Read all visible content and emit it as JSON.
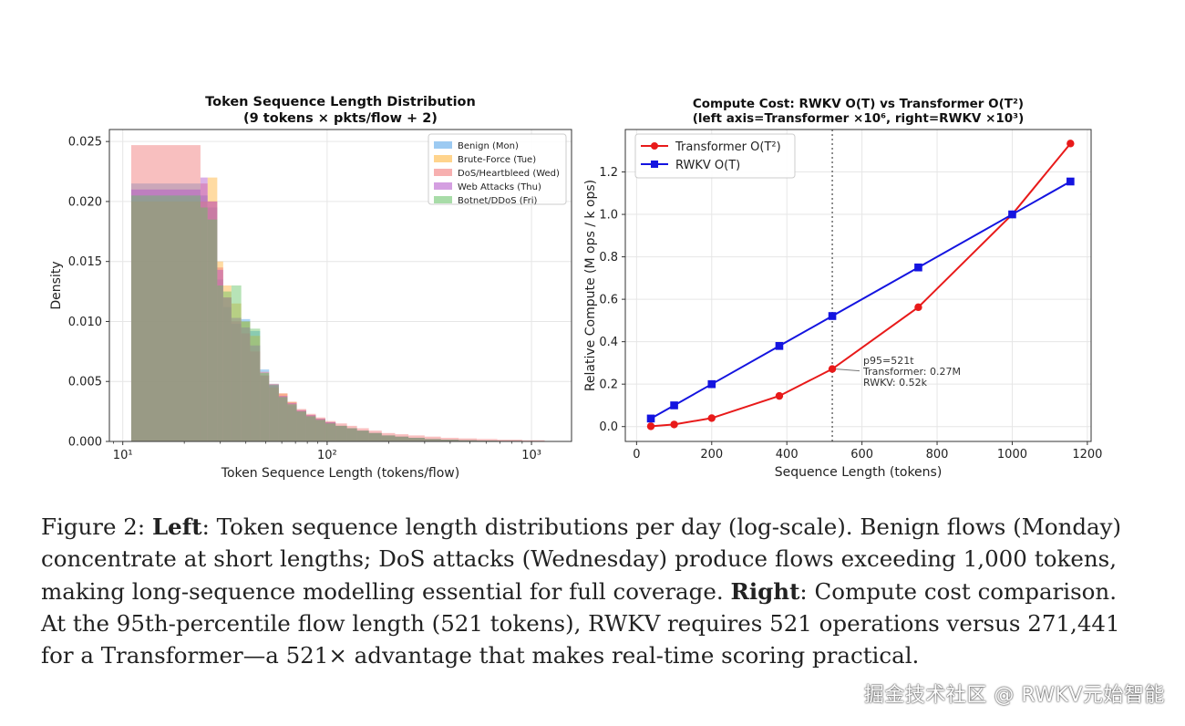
{
  "chart_data": [
    {
      "type": "histogram",
      "title": "Token Sequence Length Distribution",
      "subtitle": "(9 tokens × pkts/flow + 2)",
      "xlabel": "Token Sequence Length (tokens/flow)",
      "ylabel": "Density",
      "xscale": "log",
      "xlim": [
        8.6,
        1570
      ],
      "ylim": [
        0,
        0.026
      ],
      "xticks": [
        {
          "v": 10,
          "label": "10¹"
        },
        {
          "v": 100,
          "label": "10²"
        },
        {
          "v": 1000,
          "label": "10³"
        }
      ],
      "yticks": [
        {
          "v": 0.0,
          "label": "0.000"
        },
        {
          "v": 0.005,
          "label": "0.005"
        },
        {
          "v": 0.01,
          "label": "0.010"
        },
        {
          "v": 0.015,
          "label": "0.015"
        },
        {
          "v": 0.02,
          "label": "0.020"
        },
        {
          "v": 0.025,
          "label": "0.025"
        }
      ],
      "grid": true,
      "legend_position": "top-right",
      "bin_edges": [
        11,
        24,
        26,
        29,
        31,
        34,
        38,
        42,
        47,
        52,
        58,
        64,
        71,
        79,
        88,
        98,
        110,
        125,
        140,
        160,
        185,
        215,
        250,
        300,
        360,
        440,
        540,
        680,
        900,
        1160
      ],
      "series": [
        {
          "name": "Benign (Mon)",
          "color": "#4a9fe8",
          "values": [
            0.0215,
            0.0205,
            0.0195,
            0.0135,
            0.0112,
            0.0098,
            0.0102,
            0.0092,
            0.006,
            0.0048,
            0.0037,
            0.003,
            0.0025,
            0.0021,
            0.0018,
            0.0016,
            0.0013,
            0.0011,
            0.0009,
            0.0007,
            0.0005,
            0.0004,
            0.0003,
            0.0002,
            0.00015,
            0.0001,
            7e-05,
            5e-05,
            3e-05
          ]
        },
        {
          "name": "Brute-Force (Tue)",
          "color": "#ffb030",
          "values": [
            0.02,
            0.02,
            0.022,
            0.015,
            0.013,
            0.0115,
            0.01,
            0.0088,
            0.0055,
            0.0045,
            0.004,
            0.0033,
            0.0026,
            0.0022,
            0.0019,
            0.0016,
            0.0013,
            0.0011,
            0.0009,
            0.0007,
            0.0005,
            0.0004,
            0.0003,
            0.0002,
            0.00015,
            0.0001,
            7e-05,
            5e-05,
            3e-05
          ]
        },
        {
          "name": "DoS/Heartbleed (Wed)",
          "color": "#f07070",
          "values": [
            0.0247,
            0.0215,
            0.02,
            0.0145,
            0.012,
            0.01,
            0.009,
            0.0075,
            0.0058,
            0.0048,
            0.004,
            0.0033,
            0.0027,
            0.0023,
            0.002,
            0.0017,
            0.0015,
            0.0013,
            0.0011,
            0.0009,
            0.0007,
            0.0006,
            0.0005,
            0.0004,
            0.0003,
            0.00025,
            0.0002,
            0.00015,
            0.0001
          ]
        },
        {
          "name": "Web Attacks (Thu)",
          "color": "#b050c8",
          "values": [
            0.021,
            0.022,
            0.02,
            0.0143,
            0.012,
            0.0103,
            0.0095,
            0.008,
            0.0055,
            0.0047,
            0.0038,
            0.0032,
            0.0026,
            0.0022,
            0.0019,
            0.0016,
            0.0013,
            0.0011,
            0.0009,
            0.0007,
            0.0005,
            0.0004,
            0.0003,
            0.0002,
            0.00015,
            0.0001,
            7e-05,
            5e-05,
            3e-05
          ]
        },
        {
          "name": "Botnet/DDoS (Fri)",
          "color": "#60c060",
          "values": [
            0.0205,
            0.0195,
            0.0185,
            0.013,
            0.0125,
            0.013,
            0.01,
            0.0094,
            0.0057,
            0.0047,
            0.0037,
            0.0031,
            0.0025,
            0.0021,
            0.0018,
            0.0015,
            0.0013,
            0.0011,
            0.0009,
            0.0007,
            0.0005,
            0.0004,
            0.0003,
            0.0002,
            0.00015,
            0.0001,
            7e-05,
            5e-05,
            3e-05
          ]
        }
      ]
    },
    {
      "type": "line",
      "title": "Compute Cost: RWKV O(T) vs Transformer O(T²)",
      "subtitle": "(left axis=Transformer ×10⁶, right=RWKV ×10³)",
      "xlabel": "Sequence Length (tokens)",
      "ylabel": "Relative Compute (M ops / k ops)",
      "xlim": [
        -30,
        1210
      ],
      "ylim": [
        -0.07,
        1.4
      ],
      "xticks": [
        0,
        200,
        400,
        600,
        800,
        1000,
        1200
      ],
      "yticks": [
        {
          "v": 0.0,
          "label": "0.0"
        },
        {
          "v": 0.2,
          "label": "0.2"
        },
        {
          "v": 0.4,
          "label": "0.4"
        },
        {
          "v": 0.6,
          "label": "0.6"
        },
        {
          "v": 0.8,
          "label": "0.8"
        },
        {
          "v": 1.0,
          "label": "1.0"
        },
        {
          "v": 1.2,
          "label": "1.2"
        }
      ],
      "grid": true,
      "legend_position": "top-left",
      "vline_x": 521,
      "series": [
        {
          "name": "Transformer O(T²)",
          "color": "#e81a1a",
          "marker": "circle",
          "x": [
            38,
            100,
            200,
            380,
            521,
            750,
            1000,
            1155
          ],
          "y": [
            0.0015,
            0.01,
            0.04,
            0.1444,
            0.2714,
            0.5625,
            1.0,
            1.334
          ]
        },
        {
          "name": "RWKV O(T)",
          "color": "#1414e0",
          "marker": "square",
          "x": [
            38,
            100,
            200,
            380,
            521,
            750,
            1000,
            1155
          ],
          "y": [
            0.038,
            0.1,
            0.2,
            0.38,
            0.521,
            0.75,
            1.0,
            1.155
          ]
        }
      ],
      "annotation": {
        "x": 521,
        "y": 0.2714,
        "lines": [
          "p95=521t",
          "Transformer: 0.27M",
          "RWKV: 0.52k"
        ]
      }
    }
  ],
  "caption": {
    "lines": [
      [
        {
          "t": "Figure 2: "
        },
        {
          "t": "Left",
          "b": true
        },
        {
          "t": ": Token sequence length distributions per day (log-scale). Benign flows (Monday)"
        }
      ],
      [
        {
          "t": "concentrate at short lengths; DoS attacks (Wednesday) produce flows exceeding 1,000 tokens,"
        }
      ],
      [
        {
          "t": "making long-sequence modelling essential for full coverage. "
        },
        {
          "t": "Right",
          "b": true
        },
        {
          "t": ": Compute cost comparison."
        }
      ],
      [
        {
          "t": "At the 95th-percentile flow length (521 tokens), RWKV requires 521 operations versus 271,441"
        }
      ],
      [
        {
          "t": "for a Transformer—a 521× advantage that makes real-time scoring practical."
        }
      ]
    ]
  },
  "watermark": "掘金技术社区 @ RWKV元始智能"
}
